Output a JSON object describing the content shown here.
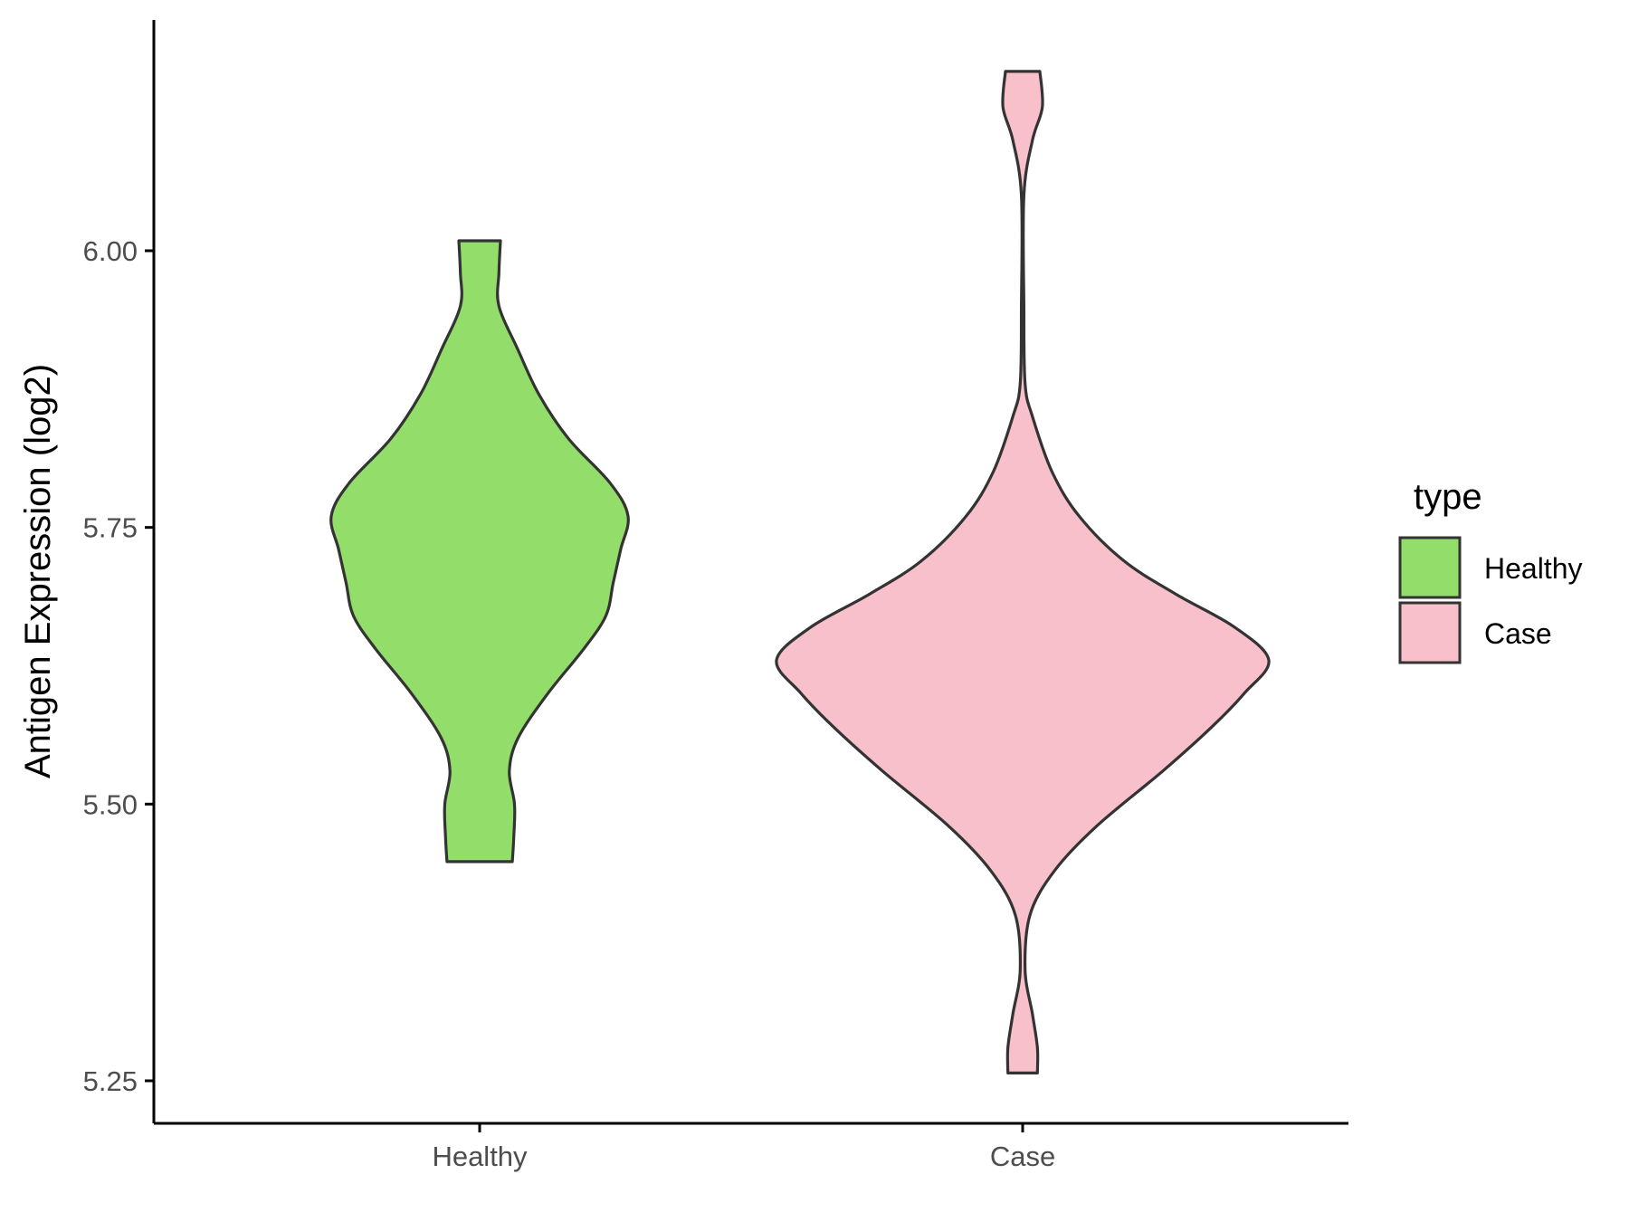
{
  "chart_data": {
    "type": "violin",
    "title": "",
    "xlabel": "",
    "ylabel": "Antigen Expression (log2)",
    "ylim": [
      5.21,
      6.22
    ],
    "yticks": [
      "5.25",
      "5.50",
      "5.75",
      "6.00"
    ],
    "categories": [
      "Healthy",
      "Case"
    ],
    "grid": false,
    "legend": {
      "title": "type",
      "position": "right",
      "entries": [
        "Healthy",
        "Case"
      ]
    },
    "colors": {
      "Healthy": "#93dd6a",
      "Case": "#f7c0cb",
      "outline": "#333333"
    },
    "series": [
      {
        "name": "Healthy",
        "range": [
          5.448,
          6.009
        ],
        "density": [
          [
            5.448,
            0.22
          ],
          [
            5.47,
            0.23
          ],
          [
            5.5,
            0.235
          ],
          [
            5.53,
            0.2
          ],
          [
            5.56,
            0.26
          ],
          [
            5.6,
            0.46
          ],
          [
            5.64,
            0.7
          ],
          [
            5.67,
            0.85
          ],
          [
            5.7,
            0.9
          ],
          [
            5.73,
            0.95
          ],
          [
            5.76,
            1.0
          ],
          [
            5.79,
            0.88
          ],
          [
            5.83,
            0.6
          ],
          [
            5.87,
            0.4
          ],
          [
            5.91,
            0.26
          ],
          [
            5.95,
            0.13
          ],
          [
            5.98,
            0.13
          ],
          [
            6.009,
            0.14
          ]
        ]
      },
      {
        "name": "Case",
        "range": [
          5.257,
          6.162
        ],
        "density": [
          [
            5.257,
            0.06
          ],
          [
            5.28,
            0.06
          ],
          [
            5.31,
            0.04
          ],
          [
            5.35,
            0.01
          ],
          [
            5.4,
            0.03
          ],
          [
            5.44,
            0.13
          ],
          [
            5.48,
            0.3
          ],
          [
            5.53,
            0.57
          ],
          [
            5.57,
            0.77
          ],
          [
            5.6,
            0.9
          ],
          [
            5.63,
            1.0
          ],
          [
            5.66,
            0.86
          ],
          [
            5.69,
            0.62
          ],
          [
            5.72,
            0.41
          ],
          [
            5.76,
            0.23
          ],
          [
            5.8,
            0.12
          ],
          [
            5.85,
            0.04
          ],
          [
            5.88,
            0.01
          ],
          [
            5.95,
            0.005
          ],
          [
            6.05,
            0.005
          ],
          [
            6.1,
            0.04
          ],
          [
            6.13,
            0.08
          ],
          [
            6.162,
            0.07
          ]
        ]
      }
    ]
  }
}
